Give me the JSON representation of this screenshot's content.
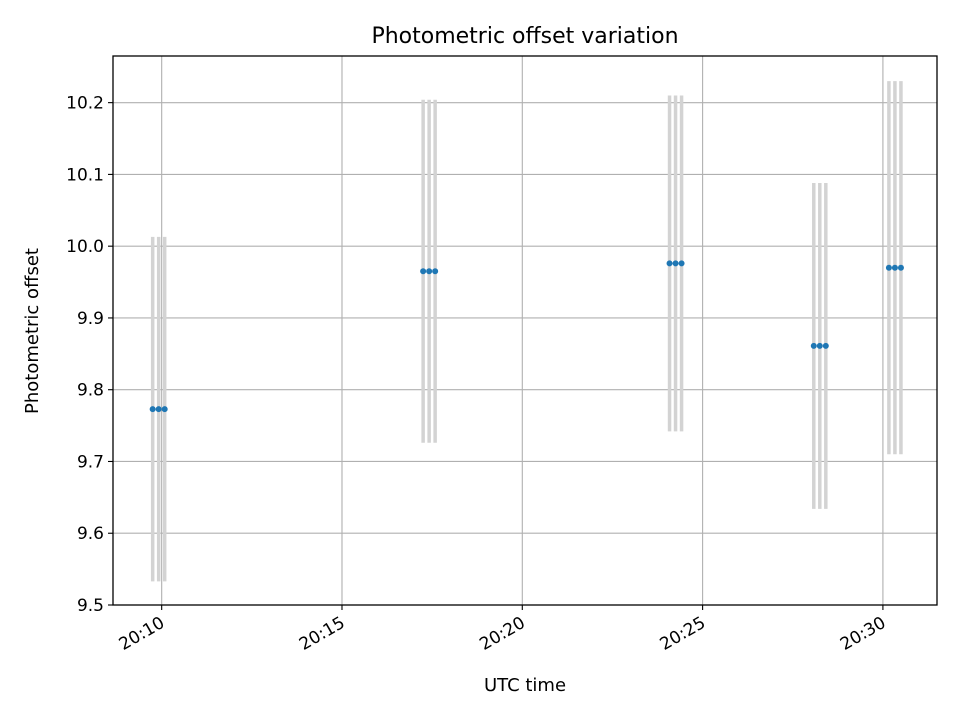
{
  "chart_data": {
    "type": "scatter",
    "title": "Photometric offset variation",
    "xlabel": "UTC time",
    "ylabel": "Photometric offset",
    "xlim": [
      "20:08:39",
      "20:31:30"
    ],
    "ylim": [
      9.5,
      10.265
    ],
    "x_ticks": [
      "20:10",
      "20:15",
      "20:20",
      "20:25",
      "20:30"
    ],
    "y_ticks": [
      "9.5",
      "9.6",
      "9.7",
      "9.8",
      "9.9",
      "10.0",
      "10.1",
      "10.2"
    ],
    "grid": true,
    "colors": {
      "point": "#1f77b4",
      "errorbar": "#d3d3d3",
      "grid": "#b0b0b0"
    },
    "points": [
      {
        "x": "20:09:45",
        "y": 9.773,
        "yerr": 0.24
      },
      {
        "x": "20:09:55",
        "y": 9.773,
        "yerr": 0.24
      },
      {
        "x": "20:10:05",
        "y": 9.773,
        "yerr": 0.24
      },
      {
        "x": "20:17:15",
        "y": 9.965,
        "yerr": 0.239
      },
      {
        "x": "20:17:25",
        "y": 9.965,
        "yerr": 0.239
      },
      {
        "x": "20:17:35",
        "y": 9.965,
        "yerr": 0.239
      },
      {
        "x": "20:24:05",
        "y": 9.976,
        "yerr": 0.234
      },
      {
        "x": "20:24:15",
        "y": 9.976,
        "yerr": 0.234
      },
      {
        "x": "20:24:25",
        "y": 9.976,
        "yerr": 0.234
      },
      {
        "x": "20:28:05",
        "y": 9.861,
        "yerr": 0.227
      },
      {
        "x": "20:28:15",
        "y": 9.861,
        "yerr": 0.227
      },
      {
        "x": "20:28:25",
        "y": 9.861,
        "yerr": 0.227
      },
      {
        "x": "20:30:10",
        "y": 9.97,
        "yerr": 0.26
      },
      {
        "x": "20:30:20",
        "y": 9.97,
        "yerr": 0.26
      },
      {
        "x": "20:30:30",
        "y": 9.97,
        "yerr": 0.26
      }
    ]
  }
}
